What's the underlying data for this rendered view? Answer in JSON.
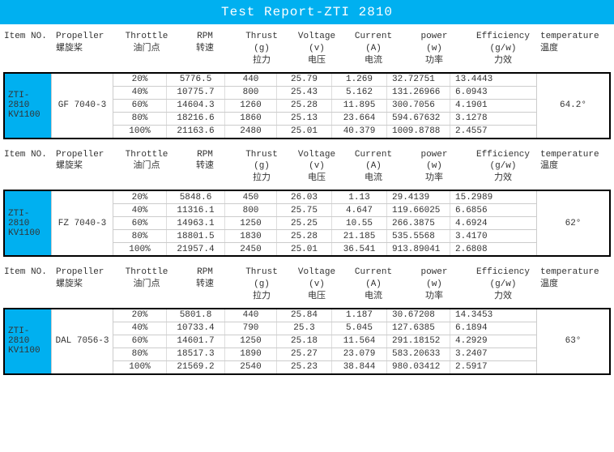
{
  "title": "Test Report-ZTI 2810",
  "colors": {
    "accent": "#00b0f0",
    "text": "#333333",
    "border": "#000000",
    "grid": "#cccccc"
  },
  "columns": [
    {
      "en": "Item NO.",
      "sub": "",
      "cn": ""
    },
    {
      "en": "Propeller",
      "sub": "",
      "cn": "螺旋桨"
    },
    {
      "en": "Throttle",
      "sub": "",
      "cn": "油门点"
    },
    {
      "en": "RPM",
      "sub": "",
      "cn": "转速"
    },
    {
      "en": "Thrust",
      "sub": "(g)",
      "cn": "拉力"
    },
    {
      "en": "Voltage",
      "sub": "(v)",
      "cn": "电压"
    },
    {
      "en": "Current",
      "sub": "(A)",
      "cn": "电流"
    },
    {
      "en": "power",
      "sub": "(w)",
      "cn": "功率"
    },
    {
      "en": "Efficiency",
      "sub": "(g/w)",
      "cn": "力效"
    },
    {
      "en": "temperature",
      "sub": "",
      "cn": "温度"
    }
  ],
  "sections": [
    {
      "item_top": "ZTI-2810",
      "item_bot": "KV1100",
      "propeller": "GF 7040-3",
      "temperature": "64.2°",
      "rows": [
        {
          "throttle": "20%",
          "rpm": "5776.5",
          "thrust": "440",
          "voltage": "25.79",
          "current": "1.269",
          "power": "32.72751",
          "eff": "13.4443"
        },
        {
          "throttle": "40%",
          "rpm": "10775.7",
          "thrust": "800",
          "voltage": "25.43",
          "current": "5.162",
          "power": "131.26966",
          "eff": "6.0943"
        },
        {
          "throttle": "60%",
          "rpm": "14604.3",
          "thrust": "1260",
          "voltage": "25.28",
          "current": "11.895",
          "power": "300.7056",
          "eff": "4.1901"
        },
        {
          "throttle": "80%",
          "rpm": "18216.6",
          "thrust": "1860",
          "voltage": "25.13",
          "current": "23.664",
          "power": "594.67632",
          "eff": "3.1278"
        },
        {
          "throttle": "100%",
          "rpm": "21163.6",
          "thrust": "2480",
          "voltage": "25.01",
          "current": "40.379",
          "power": "1009.8788",
          "eff": "2.4557"
        }
      ]
    },
    {
      "item_top": "ZTI-2810",
      "item_bot": "KV1100",
      "propeller": "FZ 7040-3",
      "temperature": "62°",
      "rows": [
        {
          "throttle": "20%",
          "rpm": "5848.6",
          "thrust": "450",
          "voltage": "26.03",
          "current": "1.13",
          "power": "29.4139",
          "eff": "15.2989"
        },
        {
          "throttle": "40%",
          "rpm": "11316.1",
          "thrust": "800",
          "voltage": "25.75",
          "current": "4.647",
          "power": "119.66025",
          "eff": "6.6856"
        },
        {
          "throttle": "60%",
          "rpm": "14963.1",
          "thrust": "1250",
          "voltage": "25.25",
          "current": "10.55",
          "power": "266.3875",
          "eff": "4.6924"
        },
        {
          "throttle": "80%",
          "rpm": "18801.5",
          "thrust": "1830",
          "voltage": "25.28",
          "current": "21.185",
          "power": "535.5568",
          "eff": "3.4170"
        },
        {
          "throttle": "100%",
          "rpm": "21957.4",
          "thrust": "2450",
          "voltage": "25.01",
          "current": "36.541",
          "power": "913.89041",
          "eff": "2.6808"
        }
      ]
    },
    {
      "item_top": "ZTI-2810",
      "item_bot": "KV1100",
      "propeller": "DAL 7056-3",
      "temperature": "63°",
      "rows": [
        {
          "throttle": "20%",
          "rpm": "5801.8",
          "thrust": "440",
          "voltage": "25.84",
          "current": "1.187",
          "power": "30.67208",
          "eff": "14.3453"
        },
        {
          "throttle": "40%",
          "rpm": "10733.4",
          "thrust": "790",
          "voltage": "25.3",
          "current": "5.045",
          "power": "127.6385",
          "eff": "6.1894"
        },
        {
          "throttle": "60%",
          "rpm": "14601.7",
          "thrust": "1250",
          "voltage": "25.18",
          "current": "11.564",
          "power": "291.18152",
          "eff": "4.2929"
        },
        {
          "throttle": "80%",
          "rpm": "18517.3",
          "thrust": "1890",
          "voltage": "25.27",
          "current": "23.079",
          "power": "583.20633",
          "eff": "3.2407"
        },
        {
          "throttle": "100%",
          "rpm": "21569.2",
          "thrust": "2540",
          "voltage": "25.23",
          "current": "38.844",
          "power": "980.03412",
          "eff": "2.5917"
        }
      ]
    }
  ]
}
